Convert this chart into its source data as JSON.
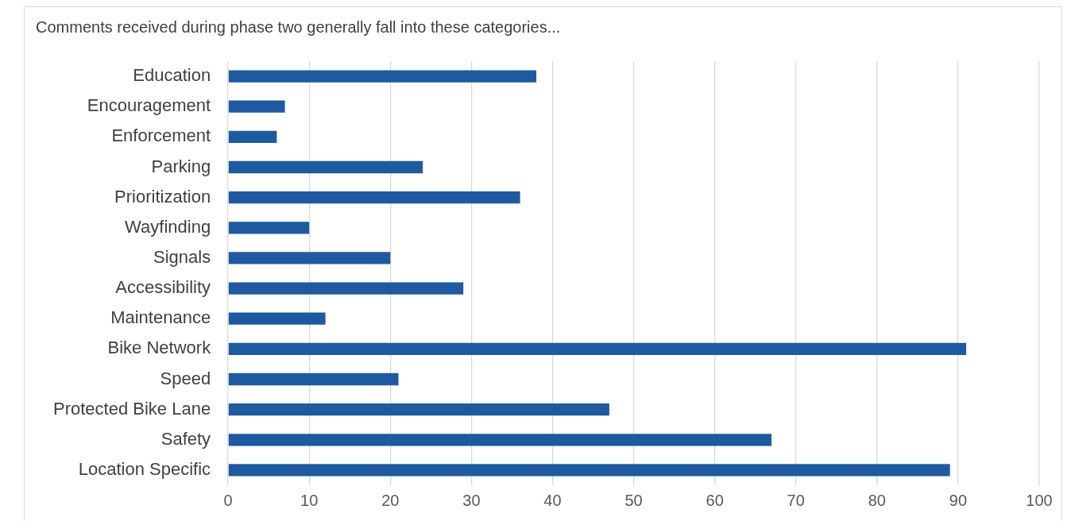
{
  "chart_data": {
    "type": "bar",
    "orientation": "horizontal",
    "title": "Comments received during phase two generally fall into these categories...",
    "categories": [
      "Education",
      "Encouragement",
      "Enforcement",
      "Parking",
      "Prioritization",
      "Wayfinding",
      "Signals",
      "Accessibility",
      "Maintenance",
      "Bike Network",
      "Speed",
      "Protected Bike Lane",
      "Safety",
      "Location Specific"
    ],
    "values": [
      38,
      7,
      6,
      24,
      36,
      10,
      20,
      29,
      12,
      91,
      21,
      47,
      67,
      89
    ],
    "color": "#1f5aa0",
    "xlim": [
      0,
      100
    ],
    "xticks": [
      0,
      10,
      20,
      30,
      40,
      50,
      60,
      70,
      80,
      90,
      100
    ],
    "grid": "x",
    "legend": false
  }
}
